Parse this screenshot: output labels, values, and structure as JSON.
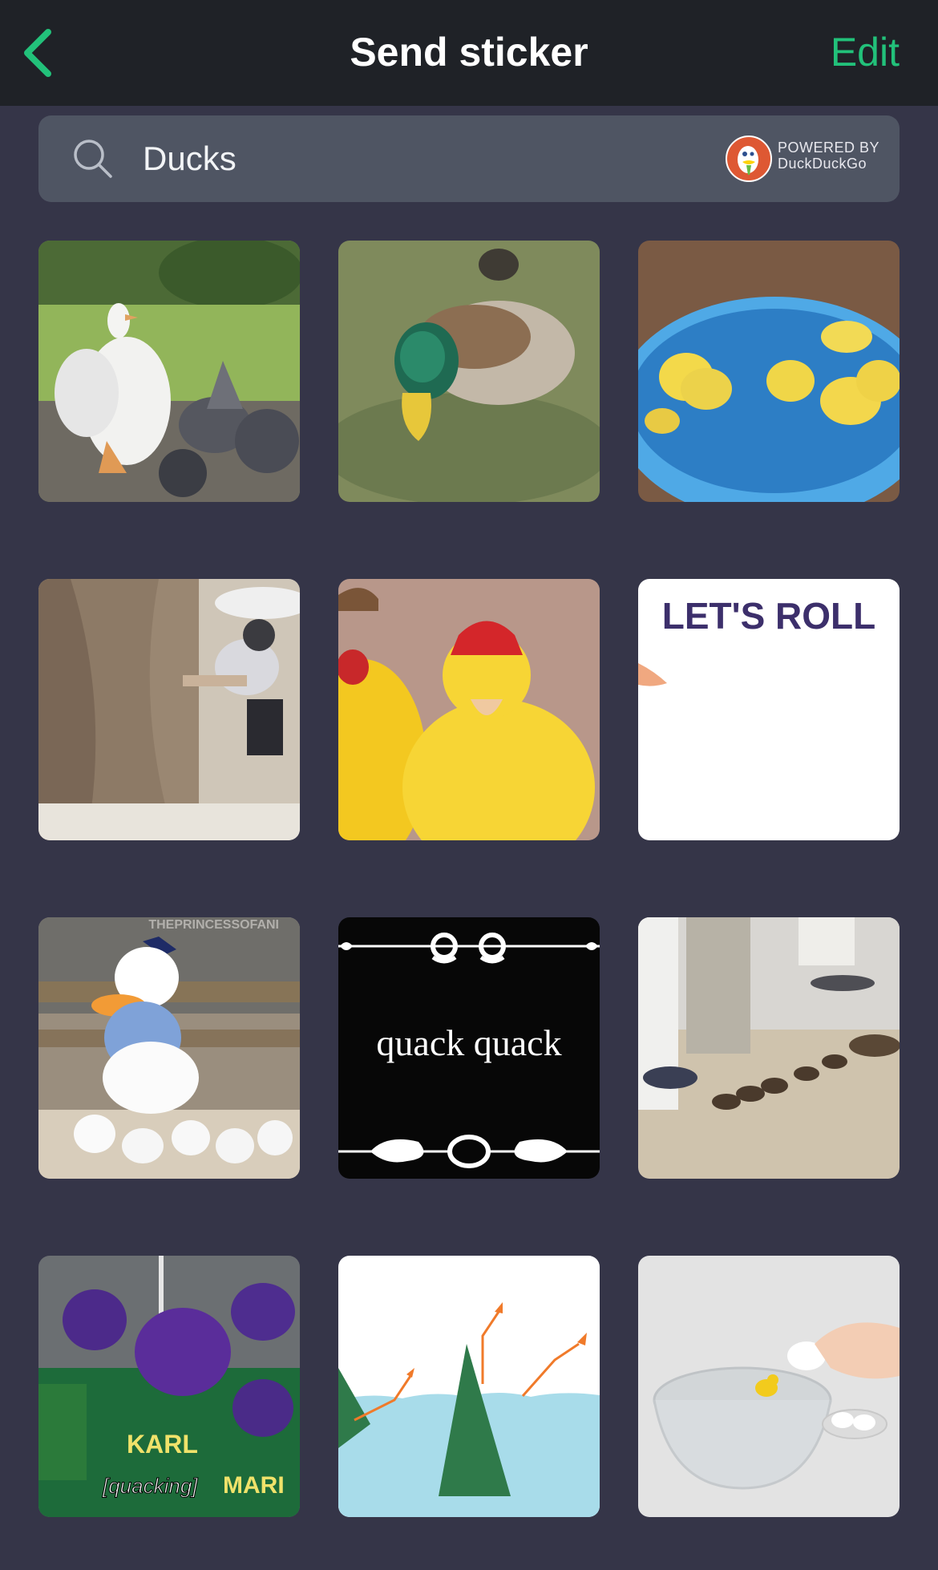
{
  "nav": {
    "title": "Send sticker",
    "edit_label": "Edit",
    "back_icon": "chevron-left-icon",
    "accent_color": "#22c17a"
  },
  "search": {
    "value": "Ducks",
    "icon": "search-icon",
    "provider_logo": "duckduckgo-logo",
    "powered_line1": "POWERED BY",
    "powered_line2": "DuckDuckGo"
  },
  "stickers": [
    {
      "name": "sticker-white-goose-pigeons"
    },
    {
      "name": "sticker-mallard-drinking"
    },
    {
      "name": "sticker-ducklings-in-pool"
    },
    {
      "name": "sticker-tree-push"
    },
    {
      "name": "sticker-ducklings-with-hats"
    },
    {
      "name": "sticker-lets-roll",
      "text": "LET'S ROLL"
    },
    {
      "name": "sticker-donald-duck-ducklings",
      "text": "THEPRINCESSOFANI"
    },
    {
      "name": "sticker-quack-quack",
      "text": "quack quack"
    },
    {
      "name": "sticker-ducklings-walking"
    },
    {
      "name": "sticker-hockey-quacking",
      "text": "[quacking]",
      "jersey1": "KARL",
      "jersey2": "MARI"
    },
    {
      "name": "sticker-cartoon-water"
    },
    {
      "name": "sticker-rubber-duck-bowl"
    }
  ]
}
